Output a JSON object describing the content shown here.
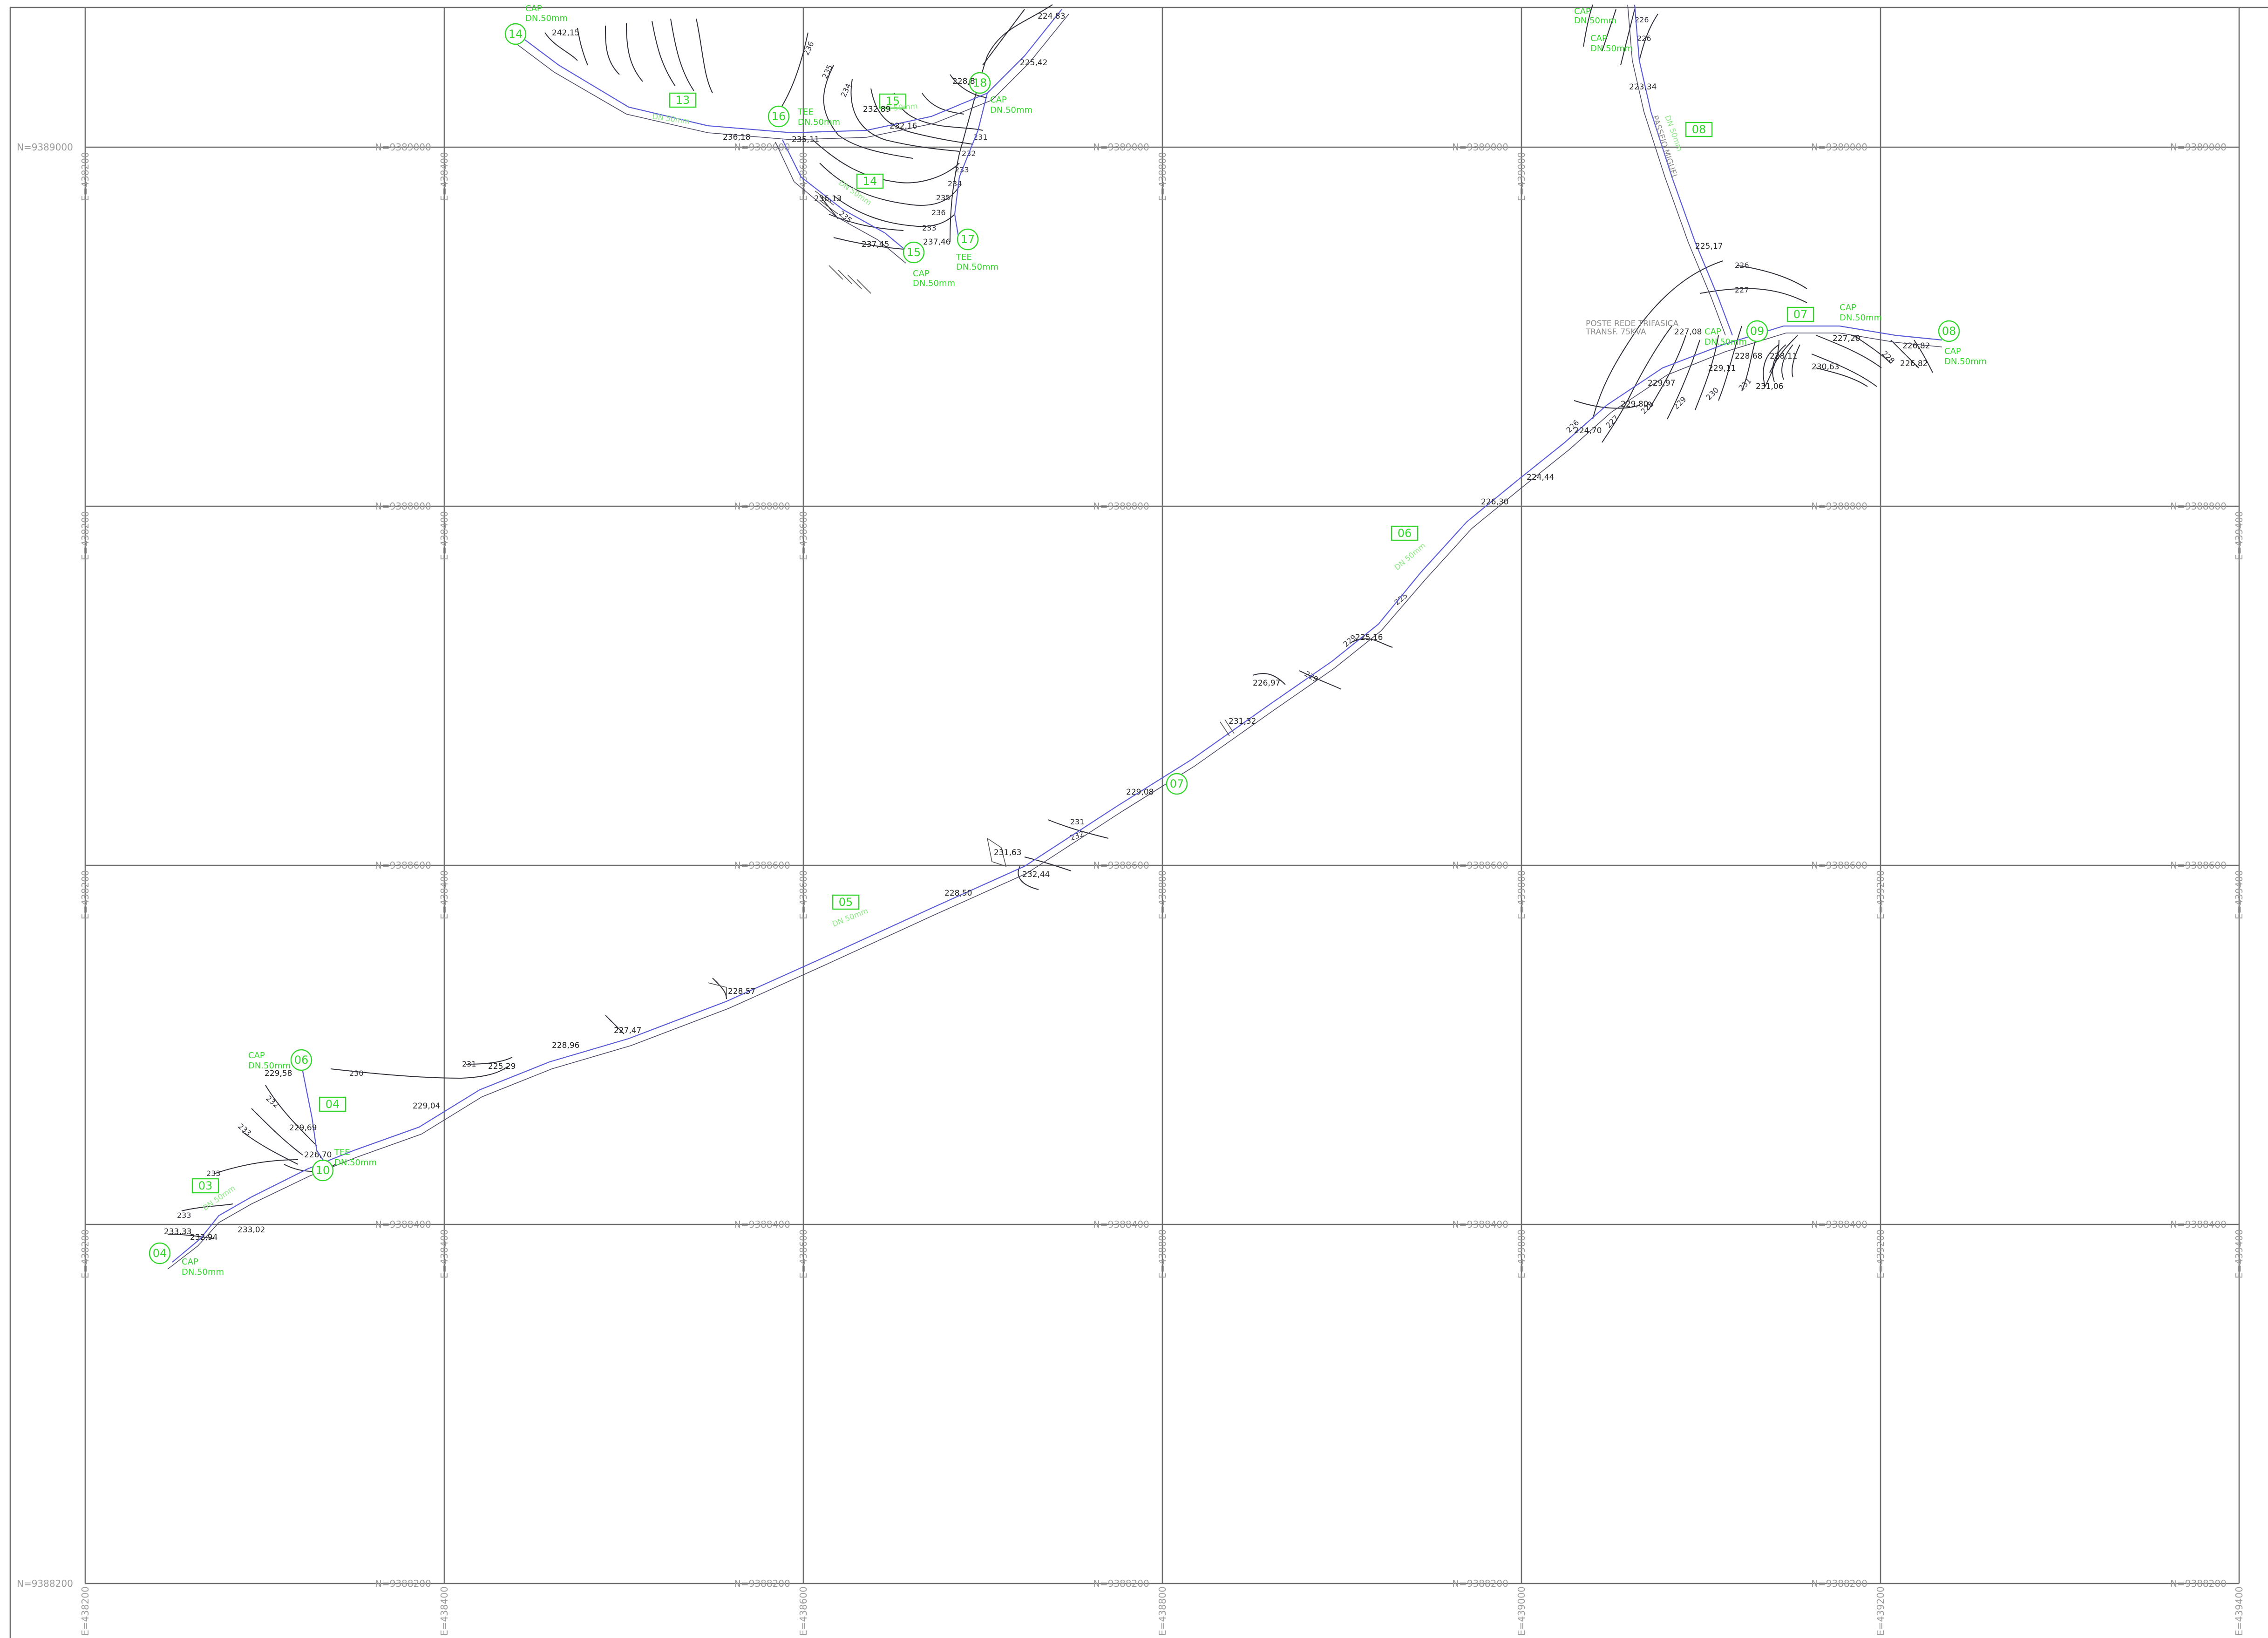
{
  "grid": {
    "north_labels": [
      "N=9389000",
      "N=9388800",
      "N=9388600",
      "N=9388400",
      "N=9388200"
    ],
    "east_labels": [
      "E=438200",
      "E=438400",
      "E=438600",
      "E=438800",
      "E=439000",
      "E=439200",
      "E=439400"
    ]
  },
  "nodes": [
    {
      "label": "14"
    },
    {
      "label": "16"
    },
    {
      "label": "18"
    },
    {
      "label": "15"
    },
    {
      "label": "17"
    },
    {
      "label": "09"
    },
    {
      "label": "08"
    },
    {
      "label": "07"
    },
    {
      "label": "06"
    },
    {
      "label": "10"
    },
    {
      "label": "04"
    }
  ],
  "segments": [
    {
      "label": "13"
    },
    {
      "label": "15"
    },
    {
      "label": "14"
    },
    {
      "label": "08"
    },
    {
      "label": "07"
    },
    {
      "label": "06"
    },
    {
      "label": "05"
    },
    {
      "label": "04"
    },
    {
      "label": "03"
    }
  ],
  "fittings": [
    {
      "type": "CAP",
      "size": "DN.50mm"
    },
    {
      "type": "CAP",
      "size": "DN.50mm"
    },
    {
      "type": "CAP",
      "size": "DN.50mm"
    },
    {
      "type": "TEE",
      "size": "DN.50mm"
    },
    {
      "type": "CAP",
      "size": "DN.50mm"
    },
    {
      "type": "CAP",
      "size": "DN.50mm"
    },
    {
      "type": "TEE",
      "size": "DN.50mm"
    },
    {
      "type": "CAP",
      "size": "DN.50mm"
    },
    {
      "type": "CAP",
      "size": "DN.50mm"
    },
    {
      "type": "CAP",
      "size": "DN.50mm"
    },
    {
      "type": "TEE",
      "size": "DN.50mm"
    },
    {
      "type": "CAP",
      "size": "DN.50mm"
    },
    {
      "type": "CAP",
      "size": "DN.50mm"
    }
  ],
  "elevations": [
    "242,15",
    "236,18",
    "235,11",
    "232,89",
    "232,16",
    "225,42",
    "224,83",
    "236,13",
    "237,45",
    "237,46",
    "228,8",
    "223,34",
    "225,17",
    "227,08",
    "228,68",
    "229,11",
    "229,97",
    "229,80",
    "224,70",
    "224,44",
    "226,30",
    "228,11",
    "231,06",
    "230,63",
    "227,20",
    "226,82",
    "226,82",
    "225,16",
    "226,97",
    "231,32",
    "229,08",
    "231,63",
    "232,44",
    "228,50",
    "228,57",
    "227,47",
    "228,96",
    "225,29",
    "229,04",
    "229,58",
    "229,69",
    "226,70",
    "233,33",
    "232,94",
    "233,02"
  ],
  "contour_labels": [
    "236",
    "235",
    "234",
    "233",
    "232",
    "231",
    "226",
    "227",
    "231",
    "232",
    "230",
    "231",
    "232",
    "233",
    "233",
    "229",
    "225",
    "226",
    "227",
    "228",
    "229",
    "230",
    "231"
  ],
  "pipe_labels": [
    "DN 50mm",
    "DN 50mm",
    "DN 50mm",
    "DN 50mm",
    "DN 50mm",
    "DN 50mm",
    "DN 50mm"
  ],
  "notes": {
    "pole_line1": "POSTE REDE TRIFASICA",
    "pole_line2": "TRANSF. 75KVA",
    "vertical_text": "PASSEIO MIGUEL"
  },
  "colors": {
    "grid": "#6e6e6e",
    "coord_text": "#9a9a9a",
    "node_green": "#33d62a",
    "pipe_blue": "#5b5bd6",
    "contour": "#2f2f3a"
  }
}
